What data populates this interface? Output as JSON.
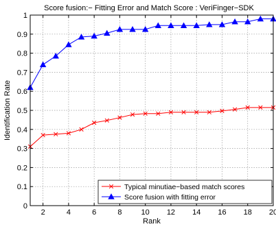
{
  "chart_data": {
    "type": "line",
    "title": "Score fusion:− Fitting Error and Match Score : VeriFinger−SDK",
    "xlabel": "Rank",
    "ylabel": "Identification Rate",
    "xlim": [
      1,
      20
    ],
    "ylim": [
      0,
      1
    ],
    "xticks": [
      2,
      4,
      6,
      8,
      10,
      12,
      14,
      16,
      18,
      20
    ],
    "yticks": [
      0,
      0.1,
      0.2,
      0.3,
      0.4,
      0.5,
      0.6,
      0.7,
      0.8,
      0.9,
      1
    ],
    "ytick_labels": [
      "0",
      "0.1",
      "0.2",
      "0.3",
      "0.4",
      "0.5",
      "0.6",
      "0.7",
      "0.8",
      "0.9",
      "1"
    ],
    "grid": true,
    "legend_position": "bottom-right",
    "x": [
      1,
      2,
      3,
      4,
      5,
      6,
      7,
      8,
      9,
      10,
      11,
      12,
      13,
      14,
      15,
      16,
      17,
      18,
      19,
      20
    ],
    "series": [
      {
        "name": "Typical minutiae−based match scores",
        "color": "#ff0000",
        "marker": "x",
        "values": [
          0.31,
          0.37,
          0.375,
          0.38,
          0.4,
          0.435,
          0.447,
          0.462,
          0.478,
          0.483,
          0.483,
          0.49,
          0.49,
          0.49,
          0.49,
          0.497,
          0.505,
          0.515,
          0.515,
          0.515
        ]
      },
      {
        "name": "Score fusion with fitting error",
        "color": "#0000ff",
        "marker": "triangle",
        "values": [
          0.62,
          0.74,
          0.785,
          0.845,
          0.885,
          0.89,
          0.905,
          0.925,
          0.925,
          0.925,
          0.945,
          0.945,
          0.945,
          0.945,
          0.95,
          0.95,
          0.965,
          0.965,
          0.98,
          0.98
        ]
      }
    ]
  }
}
